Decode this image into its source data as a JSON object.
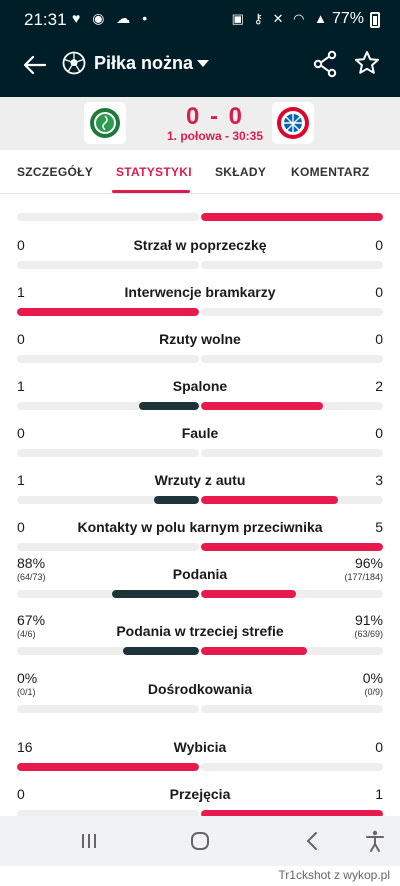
{
  "status_bar": {
    "time": "21:31",
    "battery": "77%"
  },
  "header": {
    "sport": "Piłka nożna"
  },
  "match": {
    "score": "0 - 0",
    "period": "1. połowa - 30:35"
  },
  "colors": {
    "accent": "#d81e4a",
    "header_bg": "#001e28",
    "home_bar": "#1f3438",
    "away_bar": "#e8194c",
    "track": "#eeeeee"
  },
  "tabs": [
    {
      "label": "SZCZEGÓŁY"
    },
    {
      "label": "STATYSTYKI"
    },
    {
      "label": "SKŁADY"
    },
    {
      "label": "KOMENTARZ"
    }
  ],
  "stats": [
    {
      "label": "",
      "home": "",
      "away": "",
      "home_pct": 0,
      "away_pct": 100
    },
    {
      "label": "Strzał w poprzeczkę",
      "home": "0",
      "away": "0",
      "home_pct": 0,
      "away_pct": 0
    },
    {
      "label": "Interwencje bramkarzy",
      "home": "1",
      "away": "0",
      "home_pct": 100,
      "away_pct": 0
    },
    {
      "label": "Rzuty wolne",
      "home": "0",
      "away": "0",
      "home_pct": 0,
      "away_pct": 0
    },
    {
      "label": "Spalone",
      "home": "1",
      "away": "2",
      "home_pct": 33,
      "away_pct": 67
    },
    {
      "label": "Faule",
      "home": "0",
      "away": "0",
      "home_pct": 0,
      "away_pct": 0
    },
    {
      "label": "Wrzuty z autu",
      "home": "1",
      "away": "3",
      "home_pct": 25,
      "away_pct": 75
    },
    {
      "label": "Kontakty w polu karnym przeciwnika",
      "home": "0",
      "away": "5",
      "home_pct": 0,
      "away_pct": 100
    },
    {
      "label": "Podania",
      "home": "88%",
      "home_sub": "(64/73)",
      "away": "96%",
      "away_sub": "(177/184)",
      "home_pct": 48,
      "away_pct": 52
    },
    {
      "label": "Podania w trzeciej strefie",
      "home": "67%",
      "home_sub": "(4/6)",
      "away": "91%",
      "away_sub": "(63/69)",
      "home_pct": 42,
      "away_pct": 58
    },
    {
      "label": "Dośrodkowania",
      "home": "0%",
      "home_sub": "(0/1)",
      "away": "0%",
      "away_sub": "(0/9)",
      "home_pct": 0,
      "away_pct": 0
    },
    {
      "label": "Wybicia",
      "home": "16",
      "away": "0",
      "home_pct": 100,
      "away_pct": 0
    },
    {
      "label": "Przejęcia",
      "home": "0",
      "away": "1",
      "home_pct": 0,
      "away_pct": 100
    }
  ],
  "footer": {
    "watermark": "Tr1ckshot z wykop.pl"
  }
}
